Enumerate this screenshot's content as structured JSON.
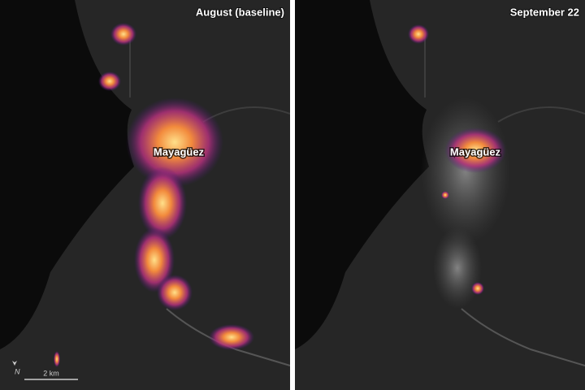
{
  "panels": [
    {
      "title": "August (baseline)",
      "city_label": "Mayagüez"
    },
    {
      "title": "September 22",
      "city_label": "Mayagüez"
    }
  ],
  "north_arrow": {
    "label": "N"
  },
  "scale_bar": {
    "label": "2 km"
  }
}
